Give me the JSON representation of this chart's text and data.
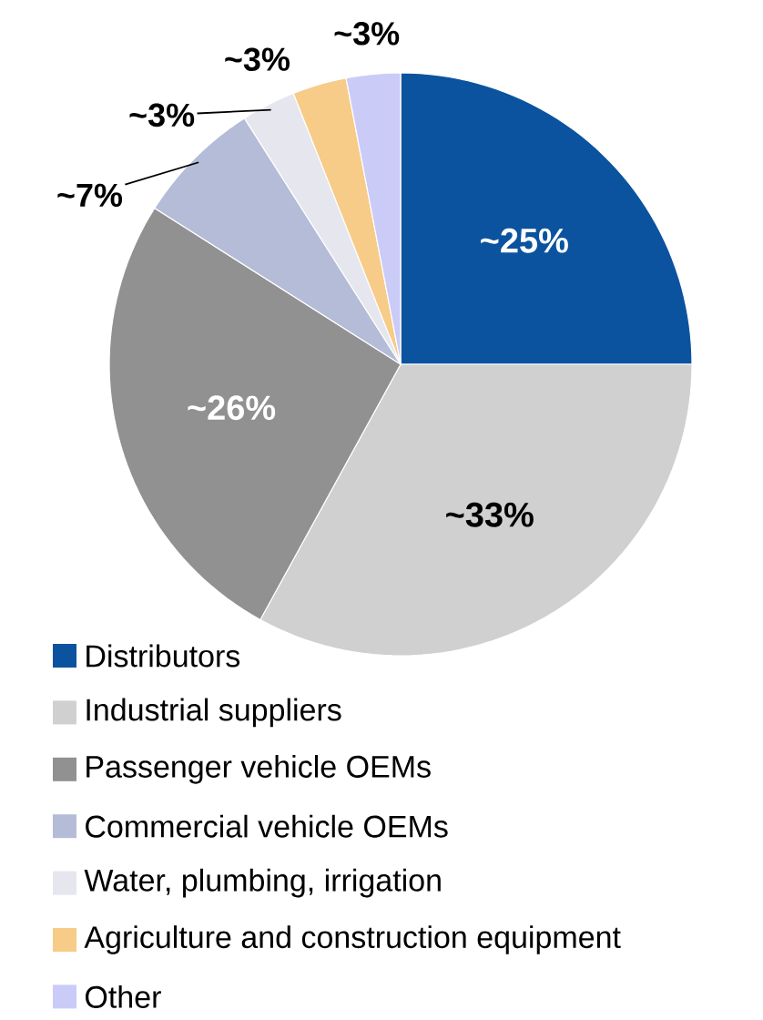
{
  "chart_data": {
    "type": "pie",
    "categories": [
      "Distributors",
      "Industrial suppliers",
      "Passenger vehicle OEMs",
      "Commercial vehicle OEMs",
      "Water, plumbing, irrigation",
      "Agriculture and construction equipment",
      "Other"
    ],
    "values": [
      25,
      33,
      26,
      7,
      3,
      3,
      3
    ],
    "colors": [
      "#0b539e",
      "#d0d0d0",
      "#919191",
      "#b5bcd7",
      "#e6e6ef",
      "#f7cb88",
      "#cbcbf8"
    ],
    "value_labels": [
      "~25%",
      "~33%",
      "~26%",
      "~7%",
      "~3%",
      "~3%",
      "~3%"
    ],
    "legend": "bottom"
  }
}
